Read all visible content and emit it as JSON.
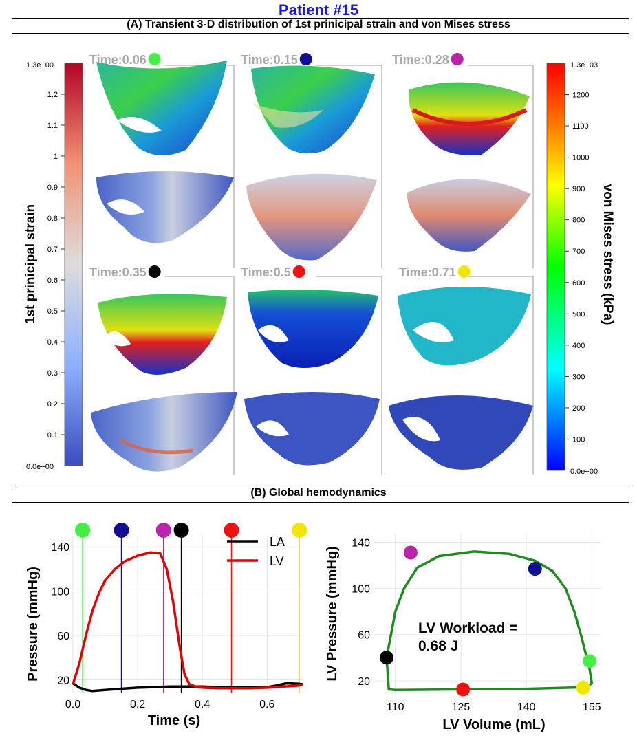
{
  "page": {
    "title": "Patient #15",
    "section_a_title": "(A) Transient 3-D distribution of 1st prinicipal strain and von Mises stress",
    "section_b_title": "(B) Global hemodynamics"
  },
  "strain_bar": {
    "label": "1st prinicipal strain",
    "max_label": "1.3e+00",
    "min_label": "0.0e+00",
    "ticks": [
      "1.2",
      "1.1",
      "1",
      "0.9",
      "0.8",
      "0.7",
      "0.6",
      "0.5",
      "0.4",
      "0.3",
      "0.2",
      "0.1"
    ],
    "colors": [
      "#b40426",
      "#f29274",
      "#dddcdc",
      "#8db0fe",
      "#3b4cc0"
    ]
  },
  "stress_bar": {
    "label": "von Mises stress (kPa)",
    "max_label": "1.3e+03",
    "min_label": "0.0e+00",
    "ticks": [
      "1200",
      "1100",
      "1000",
      "900",
      "800",
      "700",
      "600",
      "500",
      "400",
      "300",
      "200",
      "100"
    ],
    "colors": [
      "#ff0000",
      "#ff8000",
      "#ffff00",
      "#00ff00",
      "#00ffff",
      "#0000ff"
    ]
  },
  "snapshots": [
    {
      "label": "Time:0.06",
      "dot_color": "#44ee44"
    },
    {
      "label": "Time:0.15",
      "dot_color": "#101090"
    },
    {
      "label": "Time:0.28",
      "dot_color": "#bb22aa"
    },
    {
      "label": "Time:0.35",
      "dot_color": "#000000"
    },
    {
      "label": "Time:0.5",
      "dot_color": "#ee1111"
    },
    {
      "label": "Time:0.71",
      "dot_color": "#f2e600"
    }
  ],
  "chart_data": [
    {
      "type": "line",
      "title": "",
      "xlabel": "Time (s)",
      "ylabel": "Pressure (mmHg)",
      "xlim": [
        0.0,
        0.71
      ],
      "ylim": [
        8,
        150
      ],
      "xticks": [
        "0.0",
        "0.2",
        "0.4",
        "0.6"
      ],
      "xtick_values": [
        0.0,
        0.2,
        0.4,
        0.6
      ],
      "yticks": [
        "20",
        "60",
        "100",
        "140"
      ],
      "ytick_values": [
        20,
        60,
        100,
        140
      ],
      "legend": [
        "LA",
        "LV"
      ],
      "series": [
        {
          "name": "LA",
          "color": "#000000",
          "x": [
            0.0,
            0.02,
            0.04,
            0.06,
            0.1,
            0.15,
            0.2,
            0.25,
            0.3,
            0.35,
            0.4,
            0.45,
            0.5,
            0.55,
            0.6,
            0.63,
            0.66,
            0.7,
            0.71
          ],
          "y": [
            17,
            13,
            11,
            10,
            11,
            12,
            13,
            13.5,
            14,
            14,
            14,
            13.5,
            13.5,
            13.5,
            13.5,
            15,
            17,
            16.5,
            16
          ]
        },
        {
          "name": "LV",
          "color": "#e00000",
          "x": [
            0.0,
            0.02,
            0.04,
            0.06,
            0.08,
            0.1,
            0.13,
            0.16,
            0.2,
            0.24,
            0.27,
            0.29,
            0.31,
            0.33,
            0.345,
            0.36,
            0.38,
            0.4,
            0.45,
            0.5,
            0.55,
            0.6,
            0.65,
            0.7,
            0.71
          ],
          "y": [
            16,
            35,
            60,
            82,
            98,
            110,
            120,
            127,
            132,
            135,
            134,
            120,
            90,
            50,
            25,
            16,
            14,
            13,
            12.5,
            12.5,
            12.5,
            13,
            14,
            15,
            15.5
          ]
        }
      ],
      "markers": [
        {
          "time": 0.03,
          "color": "#44ee44"
        },
        {
          "time": 0.15,
          "color": "#101090"
        },
        {
          "time": 0.28,
          "color": "#bb22aa"
        },
        {
          "time": 0.335,
          "color": "#000000"
        },
        {
          "time": 0.49,
          "color": "#ee1111"
        },
        {
          "time": 0.7,
          "color": "#f2e600"
        }
      ]
    },
    {
      "type": "line",
      "title": "",
      "xlabel": "LV Volume (mL)",
      "ylabel": "LV Pressure (mmHg)",
      "xlim": [
        105,
        157
      ],
      "ylim": [
        8,
        148
      ],
      "xticks": [
        "110",
        "125",
        "140",
        "155"
      ],
      "xtick_values": [
        110,
        125,
        140,
        155
      ],
      "yticks": [
        "20",
        "60",
        "100",
        "140"
      ],
      "ytick_values": [
        20,
        60,
        100,
        140
      ],
      "annotation": "LV Workload =\n0.68 J",
      "annotation_lines": [
        "LV Workload =",
        "0.68 J"
      ],
      "loop": {
        "color": "#1f8a1f",
        "volume": [
          108,
          109,
          110,
          112,
          115,
          120,
          128,
          136,
          142,
          146,
          149,
          151,
          152.5,
          153.5,
          154,
          154.5,
          155,
          154,
          150,
          140,
          125,
          110,
          108.5,
          108
        ],
        "pressure": [
          40,
          60,
          80,
          100,
          118,
          128,
          132,
          130,
          124,
          115,
          100,
          80,
          60,
          45,
          38,
          30,
          18,
          14.5,
          14,
          13,
          12.5,
          12,
          12.5,
          40
        ]
      },
      "points": [
        {
          "volume": 154.5,
          "pressure": 37,
          "color": "#44ee44"
        },
        {
          "volume": 142,
          "pressure": 117,
          "color": "#101090"
        },
        {
          "volume": 113.5,
          "pressure": 131,
          "color": "#bb22aa"
        },
        {
          "volume": 108,
          "pressure": 40,
          "color": "#000000"
        },
        {
          "volume": 125.5,
          "pressure": 12.5,
          "color": "#ee1111"
        },
        {
          "volume": 153,
          "pressure": 14,
          "color": "#f2e600"
        }
      ]
    }
  ]
}
